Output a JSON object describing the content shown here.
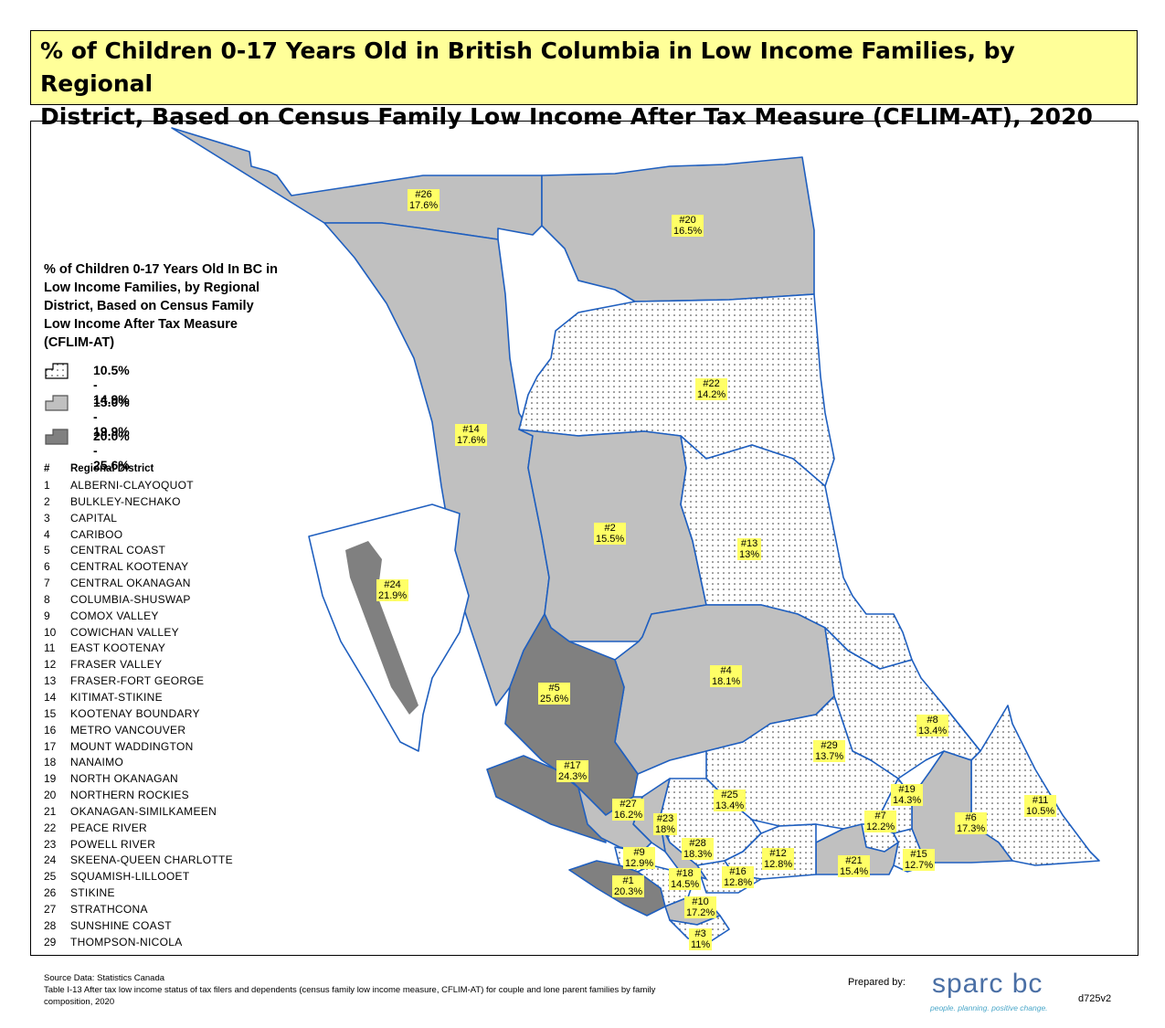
{
  "title": {
    "line1": "% of Children 0-17 Years Old in British Columbia in Low Income Families, by Regional",
    "line2": "District, Based on Census Family Low Income After Tax Measure (CFLIM-AT), 2020"
  },
  "legend": {
    "title": "% of Children 0-17 Years Old In BC in Low Income Families, by Regional District, Based on Census Family Low Income After Tax Measure (CFLIM-AT)",
    "classes": [
      {
        "label": "10.5% - 14.9%",
        "pattern": "dotted",
        "color": "#ffffff"
      },
      {
        "label": "15.0% - 19.9%",
        "pattern": "solid",
        "color": "#c0c0c0"
      },
      {
        "label": "20.0% - 25.6%",
        "pattern": "solid",
        "color": "#808080"
      }
    ]
  },
  "district_header": {
    "num": "#",
    "name": "Regional District"
  },
  "districts": [
    {
      "num": "1",
      "name": "ALBERNI-CLAYOQUOT"
    },
    {
      "num": "2",
      "name": "BULKLEY-NECHAKO"
    },
    {
      "num": "3",
      "name": "CAPITAL"
    },
    {
      "num": "4",
      "name": "CARIBOO"
    },
    {
      "num": "5",
      "name": "CENTRAL COAST"
    },
    {
      "num": "6",
      "name": "CENTRAL KOOTENAY"
    },
    {
      "num": "7",
      "name": "CENTRAL OKANAGAN"
    },
    {
      "num": "8",
      "name": "COLUMBIA-SHUSWAP"
    },
    {
      "num": "9",
      "name": "COMOX VALLEY"
    },
    {
      "num": "10",
      "name": "COWICHAN VALLEY"
    },
    {
      "num": "11",
      "name": "EAST KOOTENAY"
    },
    {
      "num": "12",
      "name": "FRASER VALLEY"
    },
    {
      "num": "13",
      "name": "FRASER-FORT GEORGE"
    },
    {
      "num": "14",
      "name": "KITIMAT-STIKINE"
    },
    {
      "num": "15",
      "name": "KOOTENAY BOUNDARY"
    },
    {
      "num": "16",
      "name": "METRO VANCOUVER"
    },
    {
      "num": "17",
      "name": "MOUNT WADDINGTON"
    },
    {
      "num": "18",
      "name": "NANAIMO"
    },
    {
      "num": "19",
      "name": "NORTH OKANAGAN"
    },
    {
      "num": "20",
      "name": "NORTHERN ROCKIES"
    },
    {
      "num": "21",
      "name": "OKANAGAN-SIMILKAMEEN"
    },
    {
      "num": "22",
      "name": "PEACE RIVER"
    },
    {
      "num": "23",
      "name": "POWELL RIVER"
    },
    {
      "num": "24",
      "name": "SKEENA-QUEEN CHARLOTTE"
    },
    {
      "num": "25",
      "name": "SQUAMISH-LILLOOET"
    },
    {
      "num": "26",
      "name": "STIKINE"
    },
    {
      "num": "27",
      "name": "STRATHCONA"
    },
    {
      "num": "28",
      "name": "SUNSHINE COAST"
    },
    {
      "num": "29",
      "name": "THOMPSON-NICOLA"
    }
  ],
  "map_labels": [
    {
      "num": "#26",
      "value": "17.6%"
    },
    {
      "num": "#20",
      "value": "16.5%"
    },
    {
      "num": "#22",
      "value": "14.2%"
    },
    {
      "num": "#14",
      "value": "17.6%"
    },
    {
      "num": "#2",
      "value": "15.5%"
    },
    {
      "num": "#13",
      "value": "13%"
    },
    {
      "num": "#24",
      "value": "21.9%"
    },
    {
      "num": "#4",
      "value": "18.1%"
    },
    {
      "num": "#5",
      "value": "25.6%"
    },
    {
      "num": "#8",
      "value": "13.4%"
    },
    {
      "num": "#29",
      "value": "13.7%"
    },
    {
      "num": "#17",
      "value": "24.3%"
    },
    {
      "num": "#19",
      "value": "14.3%"
    },
    {
      "num": "#25",
      "value": "13.4%"
    },
    {
      "num": "#6",
      "value": "17.3%"
    },
    {
      "num": "#11",
      "value": "10.5%"
    },
    {
      "num": "#27",
      "value": "16.2%"
    },
    {
      "num": "#7",
      "value": "12.2%"
    },
    {
      "num": "#23",
      "value": "18%"
    },
    {
      "num": "#28",
      "value": "18.3%"
    },
    {
      "num": "#9",
      "value": "12.9%"
    },
    {
      "num": "#12",
      "value": "12.8%"
    },
    {
      "num": "#21",
      "value": "15.4%"
    },
    {
      "num": "#15",
      "value": "12.7%"
    },
    {
      "num": "#16",
      "value": "12.8%"
    },
    {
      "num": "#18",
      "value": "14.5%"
    },
    {
      "num": "#1",
      "value": "20.3%"
    },
    {
      "num": "#10",
      "value": "17.2%"
    },
    {
      "num": "#3",
      "value": "11%"
    }
  ],
  "source": {
    "line1": "Source Data: Statistics Canada",
    "line2": "Table I-13 After tax low income status of tax filers and dependents (census family low income measure, CFLIM-AT) for couple and lone parent families by family composition, 2020"
  },
  "prepared_by": "Prepared by:",
  "logo": {
    "word": "sparc bc",
    "tagline": "people. planning. positive change."
  },
  "doc_code": "d725v2",
  "colors": {
    "title_bg": "#ffff99",
    "label_bg": "#ffff66",
    "boundary": "#1f5fbf",
    "low": "#ffffff",
    "mid": "#c0c0c0",
    "high": "#808080"
  }
}
